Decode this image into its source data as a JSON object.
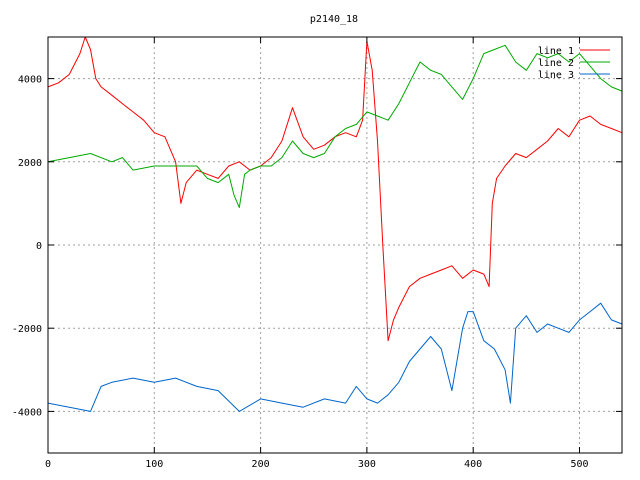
{
  "chart_data": {
    "type": "line",
    "title": "p2140_18",
    "xlabel": "",
    "ylabel": "",
    "xlim": [
      0,
      540
    ],
    "ylim": [
      -5000,
      5000
    ],
    "x_ticks": [
      0,
      100,
      200,
      300,
      400,
      500
    ],
    "y_ticks": [
      -4000,
      -2000,
      0,
      2000,
      4000
    ],
    "grid": true,
    "legend_position": "top-right",
    "series": [
      {
        "name": "line 1",
        "color": "#ff0000",
        "x": [
          0,
          10,
          20,
          30,
          35,
          40,
          45,
          50,
          60,
          70,
          80,
          90,
          100,
          110,
          120,
          125,
          130,
          140,
          150,
          160,
          170,
          180,
          190,
          200,
          210,
          220,
          230,
          240,
          250,
          260,
          270,
          280,
          290,
          296,
          300,
          305,
          310,
          315,
          320,
          325,
          330,
          340,
          350,
          360,
          370,
          380,
          390,
          400,
          410,
          415,
          418,
          422,
          430,
          440,
          450,
          460,
          470,
          480,
          490,
          500,
          510,
          520,
          530,
          540
        ],
        "y": [
          3800,
          3900,
          4100,
          4600,
          5000,
          4700,
          4000,
          3800,
          3600,
          3400,
          3200,
          3000,
          2700,
          2600,
          2000,
          1000,
          1500,
          1800,
          1700,
          1600,
          1900,
          2000,
          1800,
          1900,
          2100,
          2500,
          3300,
          2600,
          2300,
          2400,
          2600,
          2700,
          2600,
          3000,
          4900,
          4200,
          2500,
          0,
          -2300,
          -1800,
          -1500,
          -1000,
          -800,
          -700,
          -600,
          -500,
          -800,
          -600,
          -700,
          -1000,
          1000,
          1600,
          1900,
          2200,
          2100,
          2300,
          2500,
          2800,
          2600,
          3000,
          3100,
          2900,
          2800,
          2700
        ]
      },
      {
        "name": "line 2",
        "color": "#00aa00",
        "x": [
          0,
          20,
          40,
          60,
          70,
          80,
          100,
          120,
          140,
          150,
          160,
          170,
          175,
          180,
          185,
          190,
          200,
          210,
          220,
          230,
          240,
          250,
          260,
          270,
          280,
          290,
          300,
          310,
          320,
          330,
          340,
          350,
          360,
          370,
          380,
          390,
          400,
          410,
          420,
          430,
          440,
          450,
          460,
          470,
          480,
          490,
          500,
          510,
          520,
          530,
          540
        ],
        "y": [
          2000,
          2100,
          2200,
          2000,
          2100,
          1800,
          1900,
          1900,
          1900,
          1600,
          1500,
          1700,
          1200,
          900,
          1700,
          1800,
          1900,
          1900,
          2100,
          2500,
          2200,
          2100,
          2200,
          2600,
          2800,
          2900,
          3200,
          3100,
          3000,
          3400,
          3900,
          4400,
          4200,
          4100,
          3800,
          3500,
          4000,
          4600,
          4700,
          4800,
          4400,
          4200,
          4600,
          4500,
          4600,
          4400,
          4600,
          4300,
          4000,
          3800,
          3700
        ]
      },
      {
        "name": "line 3",
        "color": "#0066cc",
        "x": [
          0,
          20,
          40,
          50,
          60,
          80,
          100,
          120,
          140,
          160,
          180,
          200,
          220,
          240,
          260,
          280,
          290,
          300,
          310,
          320,
          330,
          340,
          350,
          360,
          370,
          380,
          390,
          395,
          400,
          410,
          420,
          430,
          435,
          440,
          450,
          460,
          470,
          480,
          490,
          500,
          510,
          520,
          530,
          540
        ],
        "y": [
          -3800,
          -3900,
          -4000,
          -3400,
          -3300,
          -3200,
          -3300,
          -3200,
          -3400,
          -3500,
          -4000,
          -3700,
          -3800,
          -3900,
          -3700,
          -3800,
          -3400,
          -3700,
          -3800,
          -3600,
          -3300,
          -2800,
          -2500,
          -2200,
          -2500,
          -3500,
          -2000,
          -1600,
          -1600,
          -2300,
          -2500,
          -3000,
          -3800,
          -2000,
          -1700,
          -2100,
          -1900,
          -2000,
          -2100,
          -1800,
          -1600,
          -1400,
          -1800,
          -1900
        ]
      }
    ]
  }
}
